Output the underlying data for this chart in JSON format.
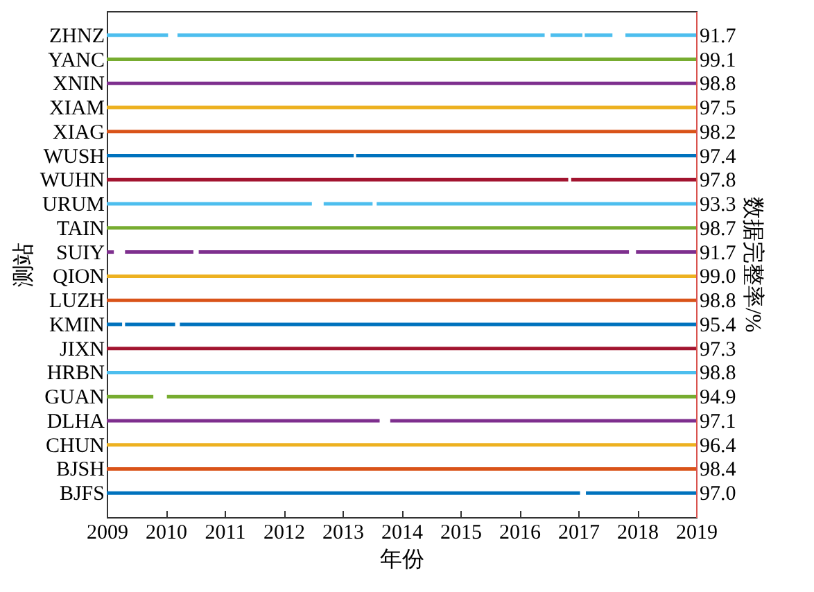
{
  "chart_data": {
    "type": "bar",
    "orientation": "horizontal",
    "xlabel": "年份",
    "ylabel": "测站",
    "y2label": "数据完整率/%",
    "categories": [
      "ZHNZ",
      "YANC",
      "XNIN",
      "XIAM",
      "XIAG",
      "WUSH",
      "WUHN",
      "URUM",
      "TAIN",
      "SUIY",
      "QION",
      "LUZH",
      "KMIN",
      "JIXN",
      "HRBN",
      "GUAN",
      "DLHA",
      "CHUN",
      "BJSH",
      "BJFS"
    ],
    "y2_categories": [
      "91.7",
      "99.1",
      "98.8",
      "97.5",
      "98.2",
      "97.4",
      "97.8",
      "93.3",
      "98.7",
      "91.7",
      "99.0",
      "98.8",
      "95.4",
      "97.3",
      "98.8",
      "94.9",
      "97.1",
      "96.4",
      "98.4",
      "97.0"
    ],
    "xlim": [
      2009,
      2019
    ],
    "xticks": [
      2009,
      2010,
      2011,
      2012,
      2013,
      2014,
      2015,
      2016,
      2017,
      2018,
      2019
    ],
    "grid": false,
    "series": [
      {
        "base": [
          2009,
          2009,
          2009,
          2009,
          2009,
          2009,
          2009,
          2009,
          2009,
          2009,
          2009,
          2009,
          2009,
          2009,
          2009,
          2009,
          2009,
          2009,
          2009,
          2009
        ],
        "values": [
          1.04,
          10,
          10,
          10,
          10,
          4.19,
          7.83,
          3.48,
          10,
          0.12,
          10,
          10,
          0.26,
          10,
          10,
          0.79,
          4.63,
          10,
          10,
          8.03
        ],
        "colors": [
          "#4dbeee",
          "#77ac30",
          "#7e2f8e",
          "#edb120",
          "#d95319",
          "#0072bd",
          "#a2142f",
          "#4dbeee",
          "#77ac30",
          "#7e2f8e",
          "#edb120",
          "#d95319",
          "#0072bd",
          "#a2142f",
          "#4dbeee",
          "#77ac30",
          "#7e2f8e",
          "#edb120",
          "#d95319",
          "#0072bd"
        ]
      },
      {
        "base": [
          2010.2,
          null,
          null,
          null,
          null,
          2013.23,
          2016.88,
          2012.68,
          null,
          2009.31,
          null,
          null,
          2009.31,
          null,
          null,
          2010.02,
          2013.81,
          null,
          null,
          2017.13
        ],
        "values": [
          6.23,
          null,
          null,
          null,
          null,
          5.77,
          2.12,
          0.83,
          null,
          1.16,
          null,
          null,
          0.85,
          null,
          null,
          8.98,
          5.19,
          null,
          null,
          1.87
        ],
        "colors": [
          "#4dbeee",
          null,
          null,
          null,
          null,
          "#0072bd",
          "#a2142f",
          "#4dbeee",
          null,
          "#7e2f8e",
          null,
          null,
          "#0072bd",
          null,
          null,
          "#77ac30",
          "#7e2f8e",
          null,
          null,
          "#0072bd"
        ]
      },
      {
        "base": [
          2016.53,
          null,
          null,
          null,
          null,
          null,
          null,
          2013.58,
          null,
          2010.56,
          null,
          null,
          2010.24,
          null,
          null,
          null,
          null,
          null,
          null,
          null
        ],
        "values": [
          0.54,
          null,
          null,
          null,
          null,
          null,
          null,
          5.42,
          null,
          7.3,
          null,
          null,
          8.76,
          null,
          null,
          null,
          null,
          null,
          null,
          null
        ],
        "colors": [
          "#4dbeee",
          null,
          null,
          null,
          null,
          null,
          null,
          "#4dbeee",
          null,
          "#7e2f8e",
          null,
          null,
          "#0072bd",
          null,
          null,
          null,
          null,
          null,
          null,
          null
        ]
      },
      {
        "base": [
          2017.11,
          null,
          null,
          null,
          null,
          null,
          null,
          null,
          null,
          2017.98,
          null,
          null,
          null,
          null,
          null,
          null,
          null,
          null,
          null,
          null
        ],
        "values": [
          0.47,
          null,
          null,
          null,
          null,
          null,
          null,
          null,
          null,
          1.02,
          null,
          null,
          null,
          null,
          null,
          null,
          null,
          null,
          null,
          null
        ],
        "colors": [
          "#4dbeee",
          null,
          null,
          null,
          null,
          null,
          null,
          null,
          null,
          "#7e2f8e",
          null,
          null,
          null,
          null,
          null,
          null,
          null,
          null,
          null,
          null
        ]
      },
      {
        "base": [
          2017.8,
          null,
          null,
          null,
          null,
          null,
          null,
          null,
          null,
          null,
          null,
          null,
          null,
          null,
          null,
          null,
          null,
          null,
          null,
          null
        ],
        "values": [
          1.2,
          null,
          null,
          null,
          null,
          null,
          null,
          null,
          null,
          null,
          null,
          null,
          null,
          null,
          null,
          null,
          null,
          null,
          null,
          null
        ],
        "color": "#4dbeee"
      }
    ]
  }
}
